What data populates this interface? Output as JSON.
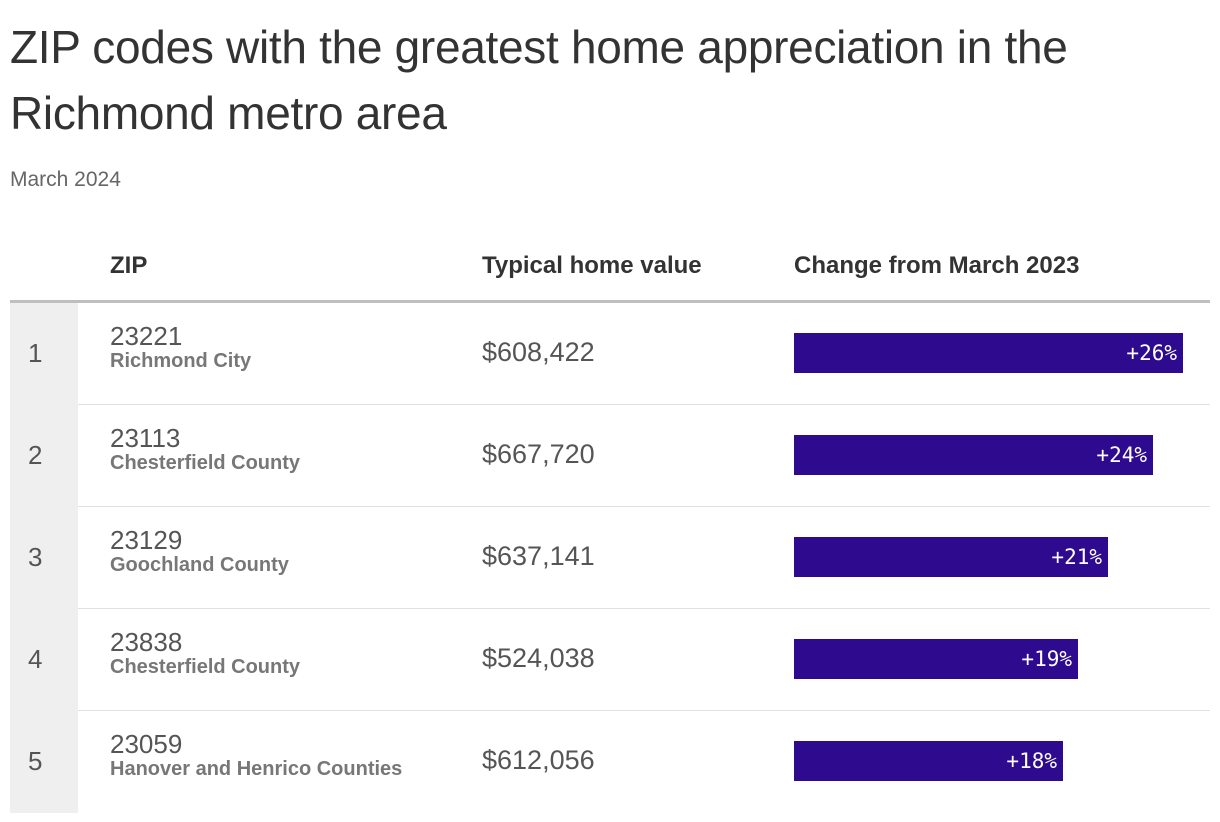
{
  "header": {
    "title": "ZIP codes with the greatest home appreciation in the Richmond metro area",
    "subtitle": "March 2024"
  },
  "colors": {
    "bar": "#2e0a8f",
    "rank_column_background": "#efefef",
    "header_rule": "#bfbfbf"
  },
  "table": {
    "columns": {
      "rank": "",
      "zip": "ZIP",
      "value": "Typical home value",
      "change": "Change from March 2023"
    },
    "rows": [
      {
        "rank": "1",
        "zip": "23221",
        "place": "Richmond City",
        "value": "$608,422",
        "change_label": "+26%"
      },
      {
        "rank": "2",
        "zip": "23113",
        "place": "Chesterfield County",
        "value": "$667,720",
        "change_label": "+24%"
      },
      {
        "rank": "3",
        "zip": "23129",
        "place": "Goochland County",
        "value": "$637,141",
        "change_label": "+21%"
      },
      {
        "rank": "4",
        "zip": "23838",
        "place": "Chesterfield County",
        "value": "$524,038",
        "change_label": "+19%"
      },
      {
        "rank": "5",
        "zip": "23059",
        "place": "Hanover and Henrico Counties",
        "value": "$612,056",
        "change_label": "+18%"
      }
    ]
  },
  "chart_data": {
    "type": "table",
    "title": "ZIP codes with the greatest home appreciation in the Richmond metro area",
    "subtitle": "March 2024",
    "columns": [
      "ZIP",
      "Typical home value",
      "Change from March 2023"
    ],
    "categories": [
      "23221",
      "23113",
      "23129",
      "23838",
      "23059"
    ],
    "series": [
      {
        "name": "Change from March 2023",
        "values": [
          26,
          24,
          21,
          19,
          18
        ]
      }
    ],
    "xlim": [
      0,
      26.5
    ]
  }
}
